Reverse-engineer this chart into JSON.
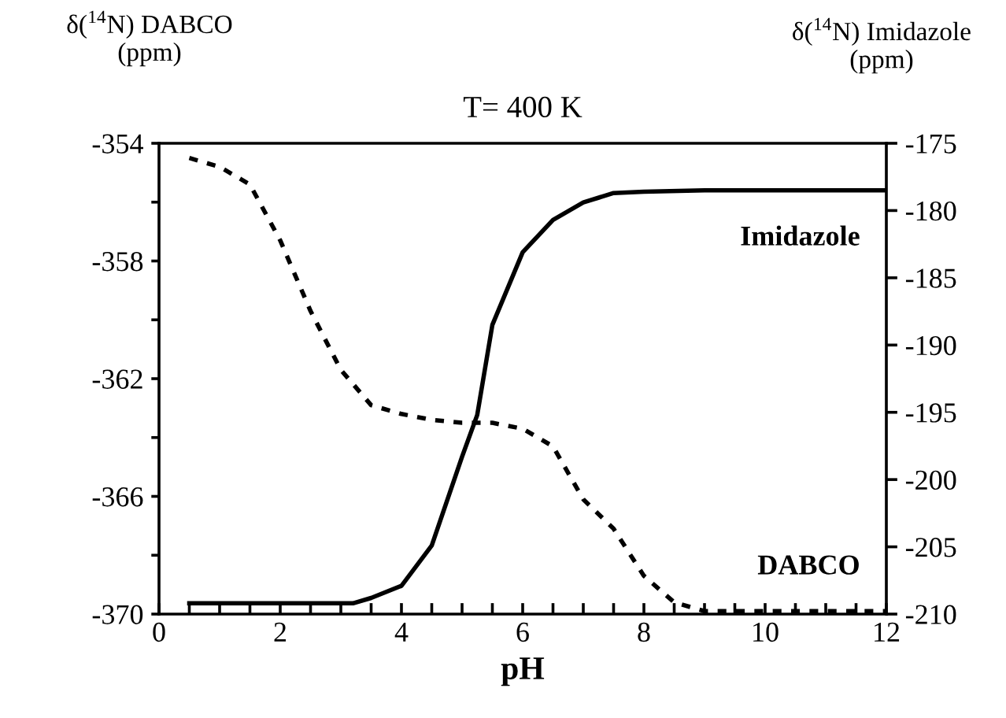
{
  "chart_data": {
    "type": "line",
    "title": "T= 400 K",
    "xlabel": "pH",
    "ylabel": "δ($^{14}$N) DABCO\n(ppm)",
    "y2label": "δ($^{14}$N) Imidazole\n(ppm)",
    "xlim": [
      0,
      12
    ],
    "xticks": [
      0,
      {
        "value": 0.5,
        "label": null
      },
      {
        "value": 1,
        "label": null
      },
      {
        "value": 1.5,
        "label": null
      },
      2,
      {
        "value": 2.5,
        "label": null
      },
      {
        "value": 3,
        "label": null
      },
      {
        "value": 3.5,
        "label": null
      },
      4,
      {
        "value": 4.5,
        "label": null
      },
      {
        "value": 5,
        "label": null
      },
      {
        "value": 5.5,
        "label": null
      },
      6,
      {
        "value": 6.5,
        "label": null
      },
      {
        "value": 7,
        "label": null
      },
      {
        "value": 7.5,
        "label": null
      },
      8,
      {
        "value": 8.5,
        "label": null
      },
      {
        "value": 9,
        "label": null
      },
      {
        "value": 9.5,
        "label": null
      },
      10,
      {
        "value": 10.5,
        "label": null
      },
      {
        "value": 11,
        "label": null
      },
      {
        "value": 11.5,
        "label": null
      },
      12
    ],
    "ylim": [
      -370,
      -354
    ],
    "yticks": [
      -370,
      {
        "value": -368,
        "label": null
      },
      -366,
      {
        "value": -364,
        "label": null
      },
      -362,
      {
        "value": -360,
        "label": null
      },
      -358,
      {
        "value": -356,
        "label": null
      },
      -354
    ],
    "y2lim": [
      -210,
      -175
    ],
    "y2ticks": [
      -210,
      -205,
      -200,
      -195,
      -190,
      -185,
      -180,
      -175
    ],
    "grid": false,
    "legend": false,
    "marker": "none",
    "series": [
      {
        "name": "Imidazole",
        "axis": "y2",
        "color": "#000000",
        "line_style": "solid",
        "x": [
          0.5,
          1,
          2,
          3,
          3.2,
          3.5,
          4,
          4.5,
          5,
          5.25,
          5.5,
          6,
          6.5,
          7,
          7.5,
          8,
          9,
          10,
          11,
          12
        ],
        "values": [
          -209.2,
          -209.2,
          -209.2,
          -209.2,
          -209.2,
          -208.8,
          -207.9,
          -204.9,
          -198.3,
          -195.2,
          -188.5,
          -183.1,
          -180.7,
          -179.4,
          -178.7,
          -178.6,
          -178.5,
          -178.5,
          -178.5,
          -178.5
        ]
      },
      {
        "name": "DABCO",
        "axis": "y",
        "color": "#000000",
        "line_style": "dotted",
        "x": [
          0.5,
          1,
          1.5,
          2,
          2.5,
          3,
          3.5,
          4,
          4.5,
          5,
          5.5,
          6,
          6.5,
          7,
          7.5,
          8,
          8.5,
          9,
          10,
          11,
          12
        ],
        "values": [
          -354.5,
          -354.8,
          -355.4,
          -357.3,
          -359.7,
          -361.7,
          -362.9,
          -363.2,
          -363.4,
          -363.5,
          -363.5,
          -363.7,
          -364.3,
          -366.1,
          -367.1,
          -368.7,
          -369.6,
          -369.9,
          -369.9,
          -369.9,
          -369.9
        ]
      }
    ]
  }
}
